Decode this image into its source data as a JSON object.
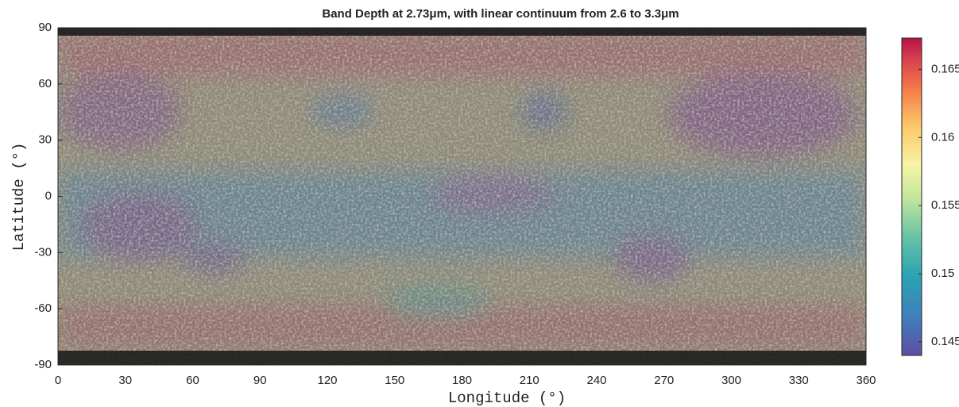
{
  "chart_data": {
    "type": "map",
    "title": "Band Depth at 2.73μm, with linear continuum from 2.6 to 3.3μm",
    "x_label": "Longitude (°)",
    "y_label": "Latitude (°)",
    "xlim": [
      0,
      360
    ],
    "xticks": [
      0,
      30,
      60,
      90,
      120,
      150,
      180,
      210,
      240,
      270,
      300,
      330,
      360
    ],
    "ylim": [
      -90,
      90
    ],
    "yticks": [
      -90,
      -60,
      -30,
      0,
      30,
      60,
      90
    ],
    "colorbar_lim": [
      0.144,
      0.1673
    ],
    "colorbar_ticks": [
      0.145,
      0.15,
      0.155,
      0.16,
      0.165
    ]
  }
}
